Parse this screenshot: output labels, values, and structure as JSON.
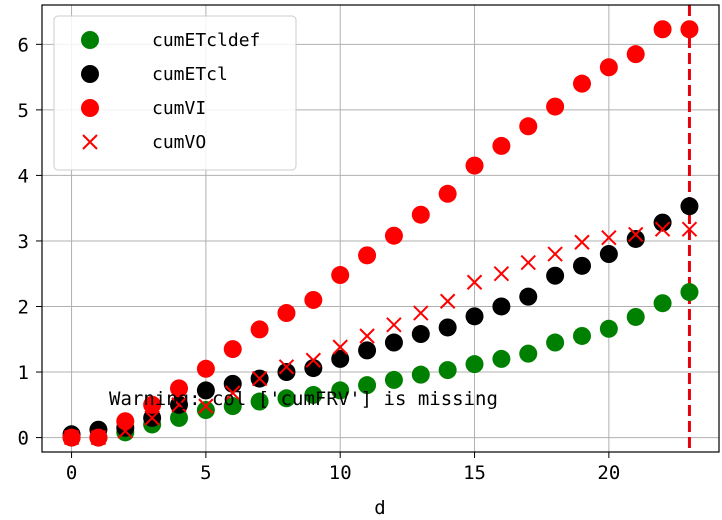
{
  "chart_data": {
    "type": "scatter",
    "xlabel": "d",
    "ylabel": "",
    "xlim": [
      -1.1,
      24.1
    ],
    "ylim": [
      -0.22,
      6.6
    ],
    "xticks": [
      0,
      5,
      10,
      15,
      20
    ],
    "yticks": [
      0,
      1,
      2,
      3,
      4,
      5,
      6
    ],
    "grid": true,
    "legend_position": "top-left",
    "vline": {
      "x": 23,
      "color": "#e8000b",
      "style": "dashed"
    },
    "annotation": "Warning: col ['cumFRV'] is missing",
    "series": [
      {
        "name": "cumETcldef",
        "marker": "circle",
        "color": "#008000",
        "x": [
          0,
          1,
          2,
          3,
          4,
          5,
          6,
          7,
          8,
          9,
          10,
          11,
          12,
          13,
          14,
          15,
          16,
          17,
          18,
          19,
          20,
          21,
          22,
          23
        ],
        "y": [
          0.0,
          0.0,
          0.08,
          0.2,
          0.3,
          0.42,
          0.48,
          0.55,
          0.6,
          0.65,
          0.72,
          0.8,
          0.88,
          0.96,
          1.03,
          1.12,
          1.2,
          1.28,
          1.45,
          1.55,
          1.66,
          1.84,
          2.05,
          2.22
        ]
      },
      {
        "name": "cumETcl",
        "marker": "circle",
        "color": "#000000",
        "x": [
          0,
          1,
          2,
          3,
          4,
          5,
          6,
          7,
          8,
          9,
          10,
          11,
          12,
          13,
          14,
          15,
          16,
          17,
          18,
          19,
          20,
          21,
          22,
          23
        ],
        "y": [
          0.05,
          0.12,
          0.15,
          0.3,
          0.5,
          0.72,
          0.82,
          0.9,
          1.0,
          1.06,
          1.2,
          1.33,
          1.45,
          1.58,
          1.68,
          1.85,
          2.0,
          2.15,
          2.47,
          2.62,
          2.8,
          3.03,
          3.28,
          3.53
        ]
      },
      {
        "name": "cumVI",
        "marker": "circle",
        "color": "#ff0000",
        "x": [
          0,
          1,
          2,
          3,
          4,
          5,
          6,
          7,
          8,
          9,
          10,
          11,
          12,
          13,
          14,
          15,
          16,
          17,
          18,
          19,
          20,
          21,
          22,
          23
        ],
        "y": [
          0.0,
          0.0,
          0.25,
          0.5,
          0.75,
          1.05,
          1.35,
          1.65,
          1.9,
          2.1,
          2.48,
          2.78,
          3.08,
          3.4,
          3.72,
          4.15,
          4.45,
          4.75,
          5.05,
          5.4,
          5.65,
          5.85,
          6.23,
          6.23
        ]
      },
      {
        "name": "cumVO",
        "marker": "x",
        "color": "#ff0000",
        "x": [
          0,
          1,
          2,
          3,
          4,
          5,
          6,
          7,
          8,
          9,
          10,
          11,
          12,
          13,
          14,
          15,
          16,
          17,
          18,
          19,
          20,
          21,
          22,
          23
        ],
        "y": [
          0.0,
          0.0,
          0.1,
          0.3,
          0.5,
          0.48,
          0.68,
          0.9,
          1.08,
          1.18,
          1.38,
          1.55,
          1.72,
          1.9,
          2.08,
          2.37,
          2.5,
          2.67,
          2.8,
          2.98,
          3.05,
          3.1,
          3.18,
          3.18
        ]
      }
    ]
  }
}
